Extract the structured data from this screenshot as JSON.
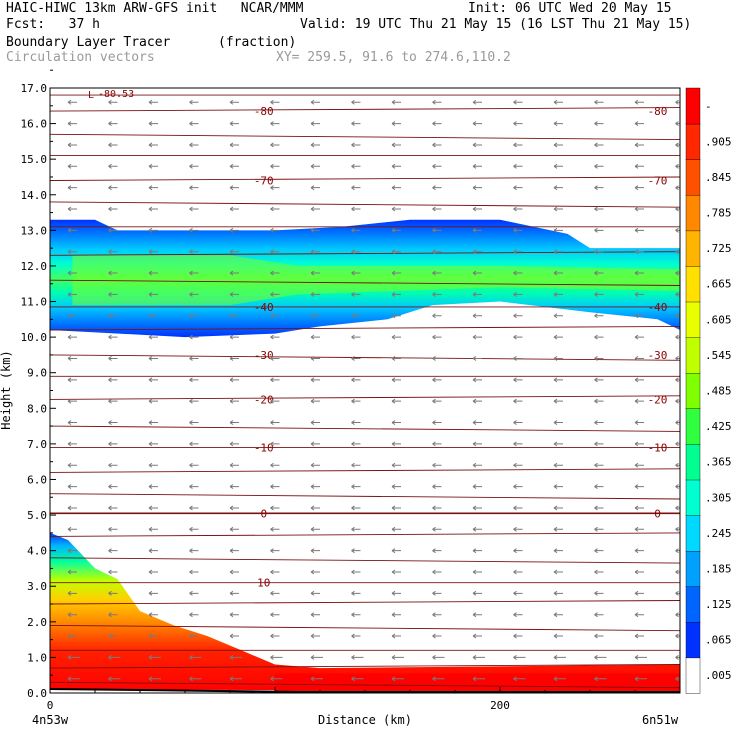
{
  "header": {
    "line1_left": "HAIC-HIWC 13km ARW-GFS init   NCAR/MMM",
    "line1_right": "Init: 06 UTC Wed 20 May 15",
    "line2_left": "Fcst:   37 h",
    "line2_right": "Valid: 19 UTC Thu 21 May 15 (16 LST Thu 21 May 15)",
    "field_name": "Boundary Layer Tracer",
    "field_units": "(fraction)",
    "vector_label": "Circulation vectors",
    "xy_label": "XY= 259.5, 91.6 to 274.6,110.2"
  },
  "chart_data": {
    "type": "heatmap",
    "xlabel": "Distance (km)",
    "ylabel": "Height (km)",
    "xlim": [
      0,
      280
    ],
    "ylim": [
      0,
      17
    ],
    "x_tick_labels": [
      {
        "x": 0,
        "label": "0"
      },
      {
        "x": 200,
        "label": "200"
      }
    ],
    "x_end_labels": [
      "4n53w",
      "6n51w"
    ],
    "y_ticks": [
      0.0,
      1.0,
      2.0,
      3.0,
      4.0,
      5.0,
      6.0,
      7.0,
      8.0,
      9.0,
      10.0,
      11.0,
      12.0,
      13.0,
      14.0,
      15.0,
      16.0,
      17.0
    ],
    "colorbar_labels": [
      ".005",
      ".065",
      ".125",
      ".185",
      ".245",
      ".305",
      ".365",
      ".425",
      ".485",
      ".545",
      ".605",
      ".665",
      ".725",
      ".785",
      ".845",
      ".905",
      "-"
    ],
    "colorbar_colors": [
      "#ffffff",
      "#0032ff",
      "#0064ff",
      "#00a0ff",
      "#00d8ff",
      "#00ffd0",
      "#00ff90",
      "#30ff40",
      "#80ff00",
      "#c0ff00",
      "#e8ff00",
      "#ffe000",
      "#ffb400",
      "#ff8800",
      "#ff5000",
      "#ff2800",
      "#ff0000"
    ],
    "temperature_contours": [
      {
        "value": 10,
        "height": 3.1,
        "label": "10"
      },
      {
        "value": 0,
        "height": 5.05,
        "label": "0"
      },
      {
        "value": -10,
        "height": 6.9,
        "label": "-10"
      },
      {
        "value": -20,
        "height": 8.25,
        "label": "-20"
      },
      {
        "value": -30,
        "height": 9.5,
        "label": "-30"
      },
      {
        "value": -40,
        "height": 10.85,
        "label": "-40"
      },
      {
        "value": -70,
        "height": 14.4,
        "label": "-70"
      },
      {
        "value": -80,
        "height": 16.35,
        "label": "-80"
      }
    ],
    "annotations": [
      "-80.53",
      "L"
    ],
    "upper_layer_extent_km": [
      10.0,
      13.3
    ],
    "lower_layer_top_km": [
      4.5,
      3.3,
      1.2,
      0.7,
      0.7,
      0.8
    ]
  }
}
